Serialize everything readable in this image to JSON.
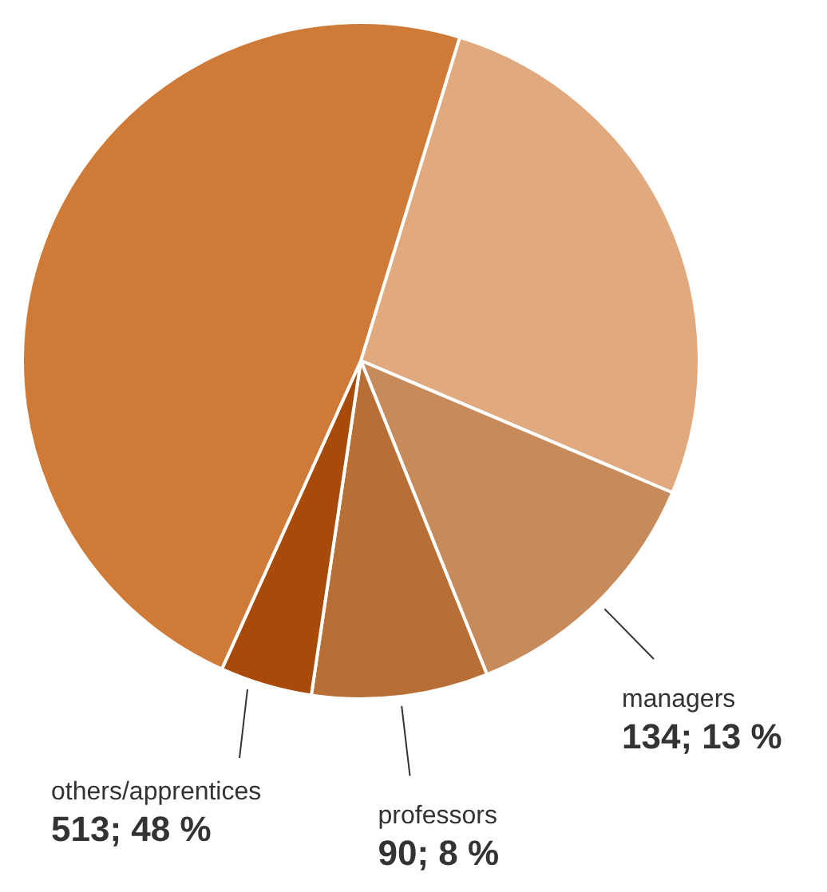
{
  "chart_data": {
    "type": "pie",
    "categories": [
      null,
      "managers",
      "professors",
      null,
      "others/apprentices"
    ],
    "values": [
      285,
      134,
      90,
      47,
      513
    ],
    "value_labels": [
      null,
      "134; 13 %",
      "90; 8 %",
      null,
      "513; 48 %"
    ],
    "colors": [
      "#e1a97e",
      "#c78a5a",
      "#b86f35",
      "#a84a0a",
      "#d07a38"
    ],
    "legend": false
  }
}
